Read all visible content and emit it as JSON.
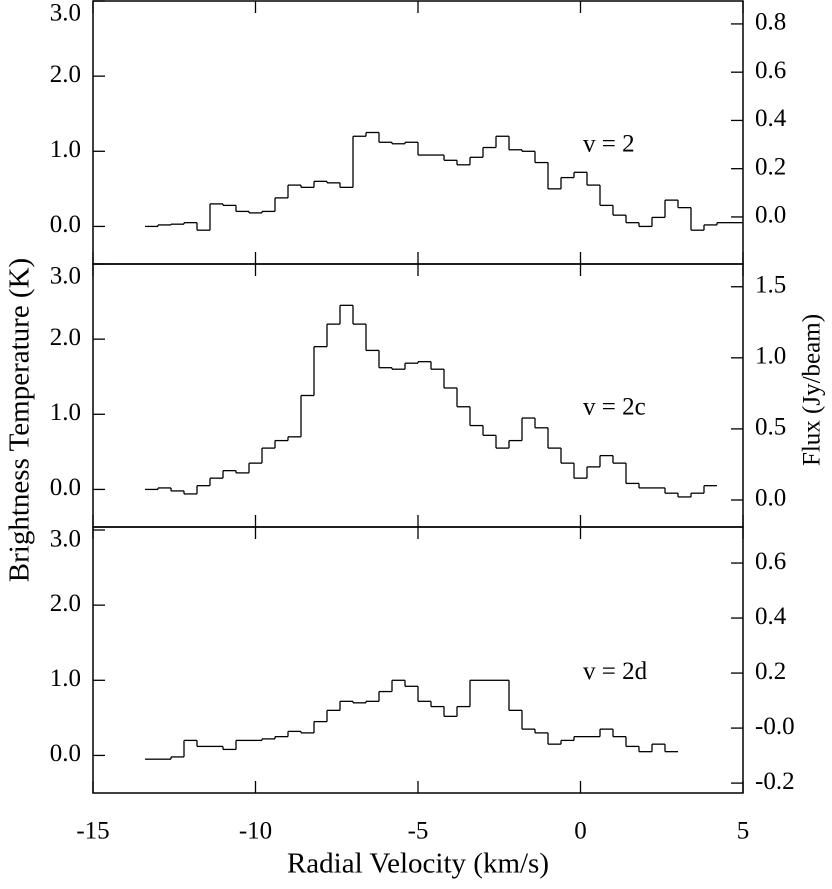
{
  "figure": {
    "xlabel": "Radial Velocity (km/s)",
    "ylabel": "Brightness Temperature (K)",
    "y2label": "Flux (Jy/beam)"
  },
  "chart_data": [
    {
      "type": "step",
      "annotation": "v = 2",
      "color": "#000000",
      "x": [
        -13.2,
        -12.8,
        -12.4,
        -12.0,
        -11.6,
        -11.2,
        -10.8,
        -10.4,
        -10.0,
        -9.6,
        -9.2,
        -8.8,
        -8.4,
        -8.0,
        -7.6,
        -7.2,
        -6.8,
        -6.4,
        -6.0,
        -5.6,
        -5.2,
        -4.8,
        -4.4,
        -4.0,
        -3.6,
        -3.2,
        -2.8,
        -2.4,
        -2.0,
        -1.6,
        -1.2,
        -0.8,
        -0.4,
        0.0,
        0.4,
        0.8,
        1.2,
        1.6,
        2.0,
        2.4,
        2.8,
        3.2,
        3.6,
        4.0,
        4.4,
        4.8
      ],
      "values": [
        0.0,
        0.02,
        0.03,
        0.05,
        -0.05,
        0.3,
        0.28,
        0.2,
        0.18,
        0.2,
        0.38,
        0.55,
        0.52,
        0.6,
        0.58,
        0.52,
        1.2,
        1.25,
        1.12,
        1.1,
        1.12,
        0.95,
        0.95,
        0.88,
        0.82,
        0.92,
        1.05,
        1.2,
        1.02,
        1.0,
        0.85,
        0.5,
        0.65,
        0.72,
        0.55,
        0.28,
        0.15,
        0.05,
        0.0,
        0.12,
        0.35,
        0.25,
        -0.05,
        0.02,
        0.05,
        0.05
      ],
      "xlim": [
        -15,
        5
      ],
      "ylim": [
        -0.5,
        3.0
      ],
      "yticks": [
        {
          "value": 0,
          "label": "0.0"
        },
        {
          "value": 1,
          "label": "1.0"
        },
        {
          "value": 2,
          "label": "2.0"
        },
        {
          "value": 3,
          "label": "3.0"
        }
      ],
      "y2lim": [
        -0.195,
        0.895
      ],
      "y2ticks": [
        {
          "value": 0,
          "label": "0.0"
        },
        {
          "value": 0.2,
          "label": "0.2"
        },
        {
          "value": 0.4,
          "label": "0.4"
        },
        {
          "value": 0.6,
          "label": "0.6"
        },
        {
          "value": 0.8,
          "label": "0.8"
        }
      ]
    },
    {
      "type": "step",
      "annotation": "v = 2c",
      "color": "#000000",
      "x": [
        -13.2,
        -12.8,
        -12.4,
        -12.0,
        -11.6,
        -11.2,
        -10.8,
        -10.4,
        -10.0,
        -9.6,
        -9.2,
        -8.8,
        -8.4,
        -8.0,
        -7.6,
        -7.2,
        -6.8,
        -6.4,
        -6.0,
        -5.6,
        -5.2,
        -4.8,
        -4.4,
        -4.0,
        -3.6,
        -3.2,
        -2.8,
        -2.4,
        -2.0,
        -1.6,
        -1.2,
        -0.8,
        -0.4,
        0.0,
        0.4,
        0.8,
        1.2,
        1.6,
        2.0,
        2.4,
        2.8,
        3.2,
        3.6,
        4.0
      ],
      "values": [
        0.0,
        0.02,
        -0.02,
        -0.06,
        0.05,
        0.15,
        0.25,
        0.22,
        0.35,
        0.55,
        0.65,
        0.7,
        1.25,
        1.9,
        2.2,
        2.45,
        2.2,
        1.85,
        1.62,
        1.6,
        1.68,
        1.7,
        1.6,
        1.35,
        1.1,
        0.85,
        0.72,
        0.55,
        0.65,
        0.95,
        0.82,
        0.55,
        0.35,
        0.15,
        0.3,
        0.45,
        0.35,
        0.08,
        0.02,
        0.02,
        -0.05,
        -0.1,
        -0.05,
        0.05
      ],
      "xlim": [
        -15,
        5
      ],
      "ylim": [
        -0.5,
        3.0
      ],
      "yticks": [
        {
          "value": 0,
          "label": "0.0"
        },
        {
          "value": 1,
          "label": "1.0"
        },
        {
          "value": 2,
          "label": "2.0"
        },
        {
          "value": 3,
          "label": "3.0"
        }
      ],
      "y2lim": [
        -0.19,
        1.66
      ],
      "y2ticks": [
        {
          "value": 0,
          "label": "0.0"
        },
        {
          "value": 0.5,
          "label": "0.5"
        },
        {
          "value": 1,
          "label": "1.0"
        },
        {
          "value": 1.5,
          "label": "1.5"
        }
      ]
    },
    {
      "type": "step",
      "annotation": "v = 2d",
      "color": "#000000",
      "x": [
        -13.2,
        -12.8,
        -12.4,
        -12.0,
        -11.6,
        -11.2,
        -10.8,
        -10.4,
        -10.0,
        -9.6,
        -9.2,
        -8.8,
        -8.4,
        -8.0,
        -7.6,
        -7.2,
        -6.8,
        -6.4,
        -6.0,
        -5.6,
        -5.2,
        -4.8,
        -4.4,
        -4.0,
        -3.6,
        -3.2,
        -2.8,
        -2.4,
        -2.0,
        -1.6,
        -1.2,
        -0.8,
        -0.4,
        0.0,
        0.4,
        0.8,
        1.2,
        1.6,
        2.0,
        2.4,
        2.8
      ],
      "values": [
        -0.05,
        -0.05,
        -0.02,
        0.2,
        0.12,
        0.12,
        0.08,
        0.2,
        0.2,
        0.22,
        0.25,
        0.32,
        0.3,
        0.45,
        0.6,
        0.72,
        0.7,
        0.72,
        0.85,
        1.0,
        0.92,
        0.72,
        0.65,
        0.52,
        0.65,
        1.0,
        1.0,
        1.0,
        0.6,
        0.35,
        0.3,
        0.15,
        0.2,
        0.25,
        0.25,
        0.35,
        0.25,
        0.12,
        0.05,
        0.15,
        0.05
      ],
      "xlim": [
        -15,
        5
      ],
      "ylim": [
        -0.5,
        3.04
      ],
      "xticks": [
        -15,
        -10,
        -5,
        0,
        5
      ],
      "yticks": [
        {
          "value": 0,
          "label": "0.0"
        },
        {
          "value": 1,
          "label": "1.0"
        },
        {
          "value": 2,
          "label": "2.0"
        },
        {
          "value": 3,
          "label": "3.0"
        }
      ],
      "y2lim": [
        -0.236,
        0.731
      ],
      "y2ticks": [
        {
          "value": -0.2,
          "label": "-0.2"
        },
        {
          "value": 0,
          "label": "-0.0"
        },
        {
          "value": 0.2,
          "label": "0.2"
        },
        {
          "value": 0.4,
          "label": "0.4"
        },
        {
          "value": 0.6,
          "label": "0.6"
        }
      ]
    }
  ]
}
